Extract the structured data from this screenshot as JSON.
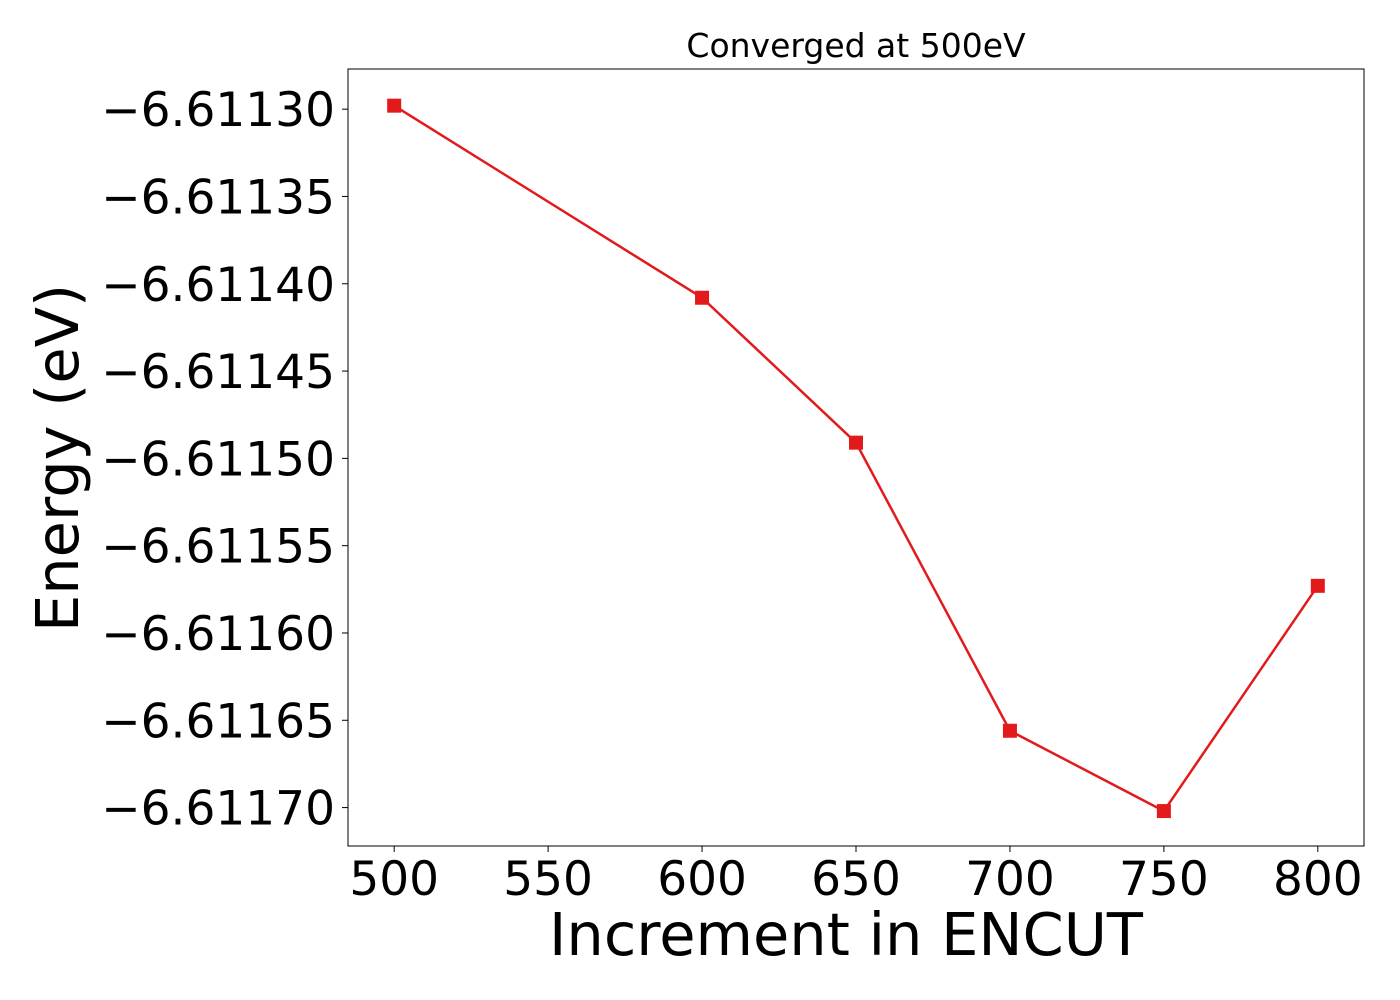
{
  "chart_data": {
    "type": "line",
    "title": "Converged at 500eV",
    "xlabel": "Increment in ENCUT",
    "ylabel": "Energy (eV)",
    "x": [
      500,
      600,
      650,
      700,
      750,
      800
    ],
    "series": [
      {
        "values": [
          -6.611298,
          -6.611408,
          -6.611491,
          -6.611656,
          -6.611702,
          -6.611573
        ],
        "color": "#e31a1c",
        "marker": "square"
      }
    ],
    "xlim": [
      485,
      815
    ],
    "ylim": [
      -6.611722,
      -6.611277
    ],
    "x_ticks": [
      500,
      550,
      600,
      650,
      700,
      750,
      800
    ],
    "x_tick_labels": [
      "500",
      "550",
      "600",
      "650",
      "700",
      "750",
      "800"
    ],
    "y_ticks": [
      -6.6113,
      -6.61135,
      -6.6114,
      -6.61145,
      -6.6115,
      -6.61155,
      -6.6116,
      -6.61165,
      -6.6117
    ],
    "y_tick_labels": [
      "−6.61130",
      "−6.61135",
      "−6.61140",
      "−6.61145",
      "−6.61150",
      "−6.61155",
      "−6.61160",
      "−6.61165",
      "−6.61170"
    ],
    "grid": false,
    "legend": false
  }
}
